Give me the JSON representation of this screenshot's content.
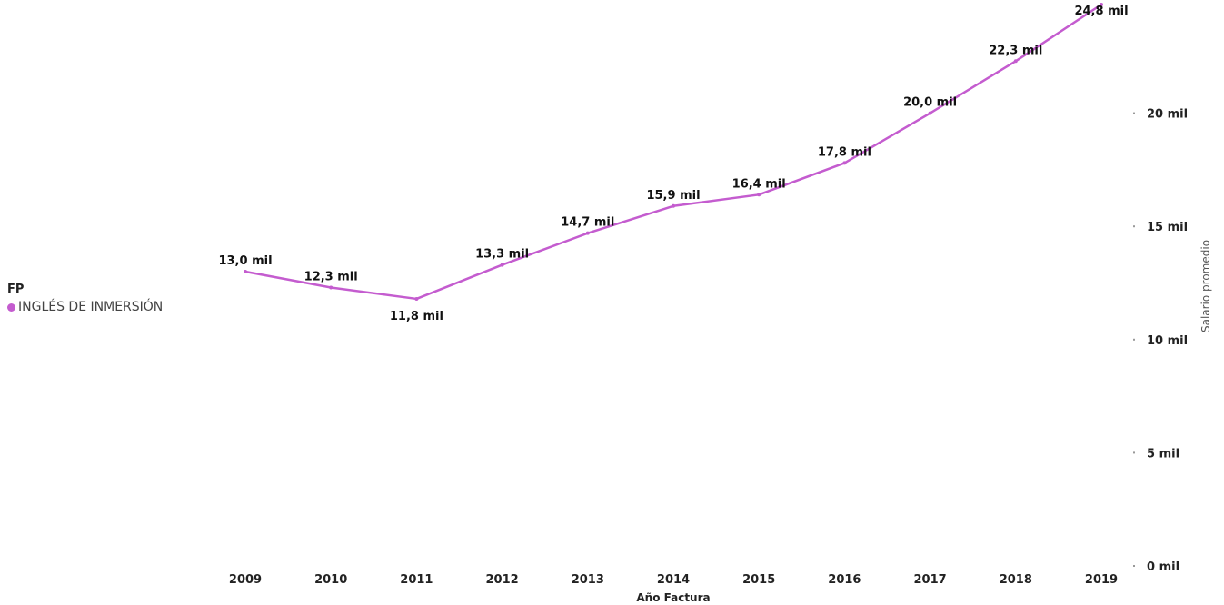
{
  "legend": {
    "title": "FP",
    "items": [
      {
        "label": "INGLÉS DE INMERSIÓN",
        "color": "#c45ccf"
      }
    ]
  },
  "chart_data": {
    "type": "line",
    "xlabel": "Año Factura",
    "ylabel": "Salario promedio",
    "categories": [
      "2009",
      "2010",
      "2011",
      "2012",
      "2013",
      "2014",
      "2015",
      "2016",
      "2017",
      "2018",
      "2019"
    ],
    "series": [
      {
        "name": "INGLÉS DE INMERSIÓN",
        "color": "#c45ccf",
        "values": [
          13.0,
          12.3,
          11.8,
          13.3,
          14.7,
          15.9,
          16.4,
          17.8,
          20.0,
          22.3,
          24.8
        ],
        "labels": [
          "13,0 mil",
          "12,3 mil",
          "11,8 mil",
          "13,3 mil",
          "14,7 mil",
          "15,9 mil",
          "16,4 mil",
          "17,8 mil",
          "20,0 mil",
          "22,3 mil",
          "24,8 mil"
        ]
      }
    ],
    "yticks": [
      0,
      5,
      10,
      15,
      20
    ],
    "ytick_labels": [
      "0 mil",
      "5 mil",
      "10 mil",
      "15 mil",
      "20 mil"
    ],
    "ylim": [
      0,
      25
    ],
    "y_axis_side": "right",
    "grid": false,
    "legend_position": "left"
  }
}
